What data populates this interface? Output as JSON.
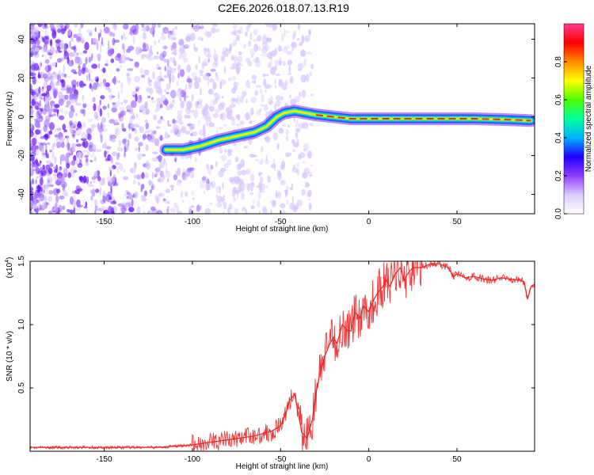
{
  "title": "C2E6.2026.018.07.13.R19",
  "spectrogram": {
    "xlabel": "Height of straight line (km)",
    "ylabel": "Frequency (Hz)",
    "xlim": [
      -192,
      94
    ],
    "ylim": [
      -50,
      48
    ],
    "xticks": [
      -150,
      -100,
      -50,
      0,
      50
    ],
    "yticks": [
      -40,
      -20,
      0,
      20,
      40
    ],
    "xtick_labels": [
      "-150",
      "-100",
      "-50",
      "0",
      "50"
    ],
    "ytick_labels": [
      "-40",
      "-20",
      "0",
      "20",
      "40"
    ],
    "trace": {
      "x": [
        -115,
        -105,
        -95,
        -85,
        -75,
        -65,
        -58,
        -52,
        -48,
        -42,
        -36,
        -30,
        -20,
        -10,
        0,
        10,
        20,
        40,
        60,
        80,
        92
      ],
      "y": [
        -17,
        -17,
        -15,
        -12,
        -10,
        -8,
        -5,
        0,
        2,
        3,
        2,
        1,
        0,
        -1,
        -1,
        -1,
        -1,
        -1,
        -1,
        -1.5,
        -2
      ]
    }
  },
  "colorbar": {
    "label": "Normalized spectral amplitude",
    "range": [
      0,
      1
    ],
    "ticks": [
      0.0,
      0.2,
      0.4,
      0.6,
      0.8
    ],
    "tick_labels": [
      "0.0",
      "0.2",
      "0.4",
      "0.6",
      "0.8"
    ],
    "colors": [
      "#ffffff",
      "#dccbff",
      "#8f3cff",
      "#1f00ff",
      "#00b4ff",
      "#00ff9c",
      "#4cff00",
      "#ffff00",
      "#ff8c00",
      "#ff0000",
      "#ff3c8c"
    ]
  },
  "chart_data": {
    "type": "line",
    "title": "",
    "xlabel": "Height of straight line (km)",
    "ylabel": "SNR (10 * v/v)",
    "y_multiplier_label": "(x10",
    "y_multiplier_exp": "4",
    "y_multiplier_close": ")",
    "xlim": [
      -192,
      94
    ],
    "ylim": [
      0,
      1.5
    ],
    "xticks": [
      -150,
      -100,
      -50,
      0,
      50
    ],
    "yticks": [
      0.5,
      1.0,
      1.5
    ],
    "xtick_labels": [
      "-150",
      "-100",
      "-50",
      "0",
      "50"
    ],
    "ytick_labels": [
      "0.5",
      "1.0",
      "1.5"
    ],
    "series": [
      {
        "name": "SNR",
        "color": "#ee2222",
        "x": [
          -192,
          -180,
          -170,
          -160,
          -150,
          -140,
          -130,
          -120,
          -110,
          -100,
          -95,
          -90,
          -85,
          -80,
          -75,
          -70,
          -65,
          -60,
          -55,
          -50,
          -47,
          -45,
          -42,
          -40,
          -38,
          -35,
          -32,
          -30,
          -28,
          -25,
          -22,
          -20,
          -18,
          -15,
          -12,
          -10,
          -8,
          -5,
          -3,
          0,
          3,
          5,
          8,
          10,
          12,
          15,
          18,
          20,
          22,
          25,
          30,
          35,
          40,
          45,
          48,
          50,
          55,
          60,
          65,
          70,
          75,
          80,
          85,
          88,
          90,
          92,
          94
        ],
        "y": [
          0.03,
          0.03,
          0.03,
          0.03,
          0.03,
          0.03,
          0.03,
          0.03,
          0.04,
          0.05,
          0.06,
          0.07,
          0.08,
          0.09,
          0.1,
          0.11,
          0.12,
          0.14,
          0.16,
          0.2,
          0.3,
          0.4,
          0.45,
          0.3,
          0.15,
          0.1,
          0.25,
          0.45,
          0.6,
          0.75,
          0.85,
          0.9,
          0.85,
          1.0,
          0.95,
          0.95,
          1.1,
          1.05,
          1.15,
          1.1,
          1.2,
          1.25,
          1.3,
          1.35,
          1.3,
          1.4,
          1.45,
          1.35,
          1.4,
          1.45,
          1.45,
          1.48,
          1.48,
          1.45,
          1.38,
          1.4,
          1.37,
          1.38,
          1.36,
          1.35,
          1.37,
          1.36,
          1.35,
          1.34,
          1.2,
          1.3,
          1.32
        ]
      }
    ]
  }
}
